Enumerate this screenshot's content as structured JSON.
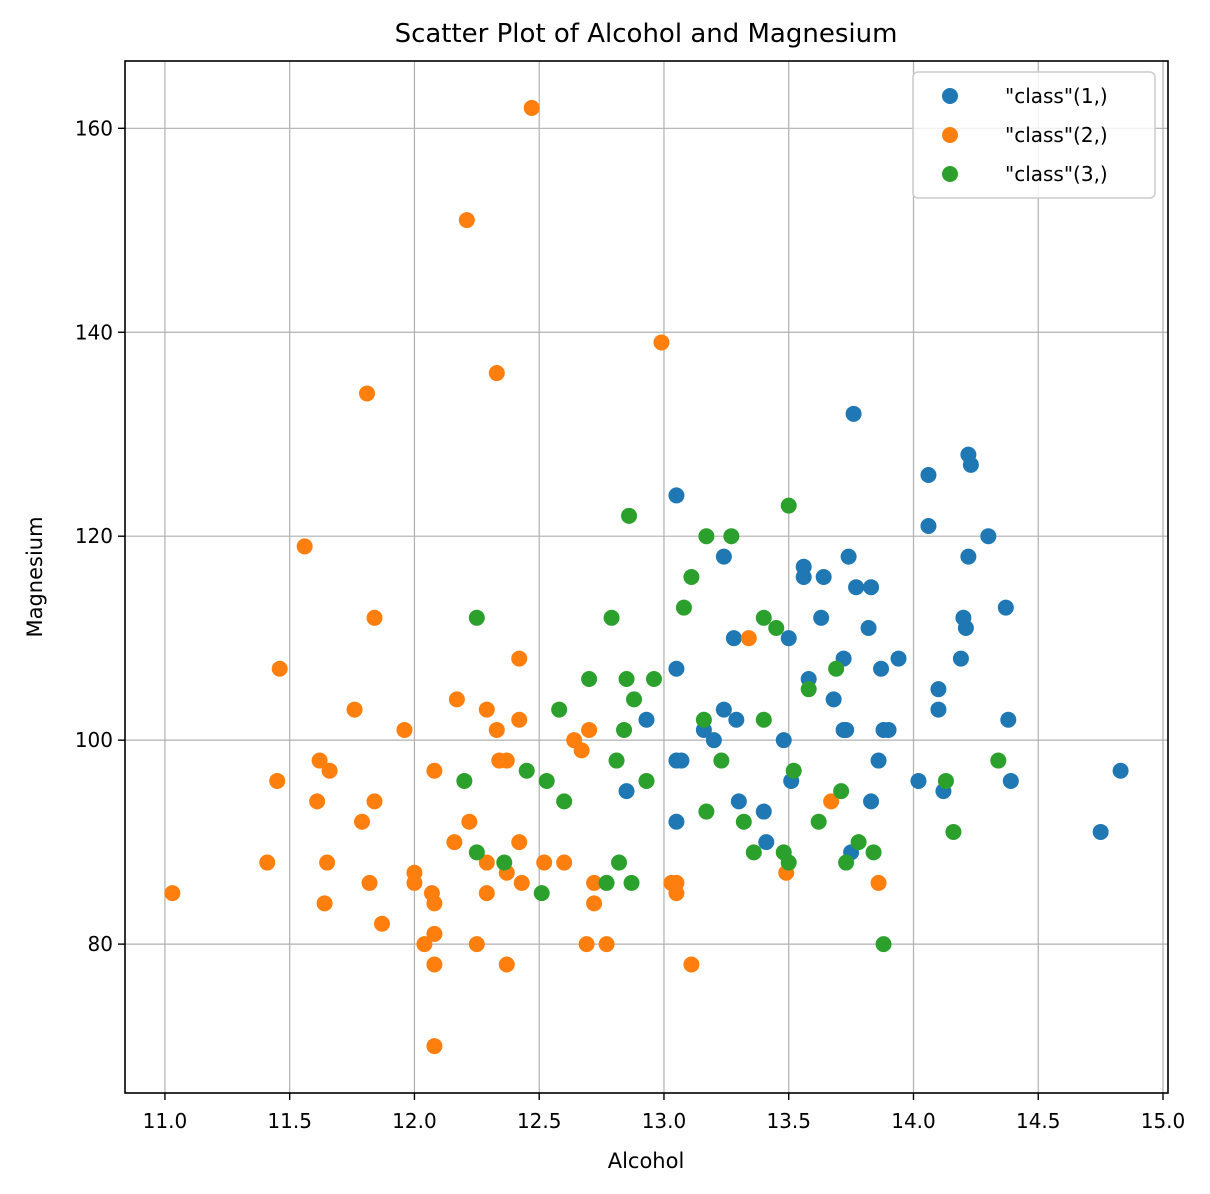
{
  "chart_data": {
    "type": "scatter",
    "title": "Scatter Plot of Alcohol and Magnesium",
    "xlabel": "Alcohol",
    "ylabel": "Magnesium",
    "xlim": [
      10.84,
      15.02
    ],
    "ylim": [
      65.4,
      166.6
    ],
    "xticks": [
      11.0,
      11.5,
      12.0,
      12.5,
      13.0,
      13.5,
      14.0,
      14.5,
      15.0
    ],
    "xtick_labels": [
      "11.0",
      "11.5",
      "12.0",
      "12.5",
      "13.0",
      "13.5",
      "14.0",
      "14.5",
      "15.0"
    ],
    "yticks": [
      80,
      100,
      120,
      140,
      160
    ],
    "ytick_labels": [
      "80",
      "100",
      "120",
      "140",
      "160"
    ],
    "grid": true,
    "legend_position": "top-right",
    "series": [
      {
        "name": "\"class\"(1,)",
        "color": "#1f77b4",
        "points": [
          [
            13.05,
            124
          ],
          [
            13.24,
            118
          ],
          [
            13.56,
            117
          ],
          [
            13.56,
            116
          ],
          [
            13.64,
            116
          ],
          [
            13.74,
            118
          ],
          [
            13.77,
            115
          ],
          [
            13.83,
            115
          ],
          [
            13.76,
            132
          ],
          [
            14.06,
            126
          ],
          [
            14.22,
            128
          ],
          [
            14.23,
            127
          ],
          [
            14.06,
            121
          ],
          [
            14.22,
            118
          ],
          [
            14.3,
            120
          ],
          [
            14.37,
            113
          ],
          [
            14.2,
            112
          ],
          [
            14.21,
            111
          ],
          [
            14.19,
            108
          ],
          [
            13.63,
            112
          ],
          [
            13.82,
            111
          ],
          [
            13.28,
            110
          ],
          [
            13.5,
            110
          ],
          [
            13.58,
            106
          ],
          [
            13.72,
            108
          ],
          [
            13.87,
            107
          ],
          [
            13.94,
            108
          ],
          [
            13.05,
            107
          ],
          [
            14.1,
            105
          ],
          [
            14.1,
            103
          ],
          [
            13.68,
            104
          ],
          [
            13.24,
            103
          ],
          [
            13.29,
            102
          ],
          [
            12.93,
            102
          ],
          [
            14.38,
            102
          ],
          [
            13.16,
            101
          ],
          [
            13.72,
            101
          ],
          [
            13.73,
            101
          ],
          [
            13.88,
            101
          ],
          [
            13.9,
            101
          ],
          [
            13.2,
            100
          ],
          [
            13.48,
            100
          ],
          [
            13.05,
            98
          ],
          [
            13.07,
            98
          ],
          [
            13.86,
            98
          ],
          [
            14.83,
            97
          ],
          [
            14.02,
            96
          ],
          [
            13.51,
            96
          ],
          [
            14.39,
            96
          ],
          [
            14.12,
            95
          ],
          [
            12.85,
            95
          ],
          [
            13.3,
            94
          ],
          [
            13.83,
            94
          ],
          [
            13.4,
            93
          ],
          [
            13.05,
            92
          ],
          [
            13.41,
            90
          ],
          [
            13.75,
            89
          ],
          [
            14.75,
            91
          ]
        ]
      },
      {
        "name": "\"class\"(2,)",
        "color": "#ff7f0e",
        "points": [
          [
            12.47,
            162
          ],
          [
            12.21,
            151
          ],
          [
            12.99,
            139
          ],
          [
            12.33,
            136
          ],
          [
            11.81,
            134
          ],
          [
            11.56,
            119
          ],
          [
            11.84,
            112
          ],
          [
            13.34,
            110
          ],
          [
            11.46,
            107
          ],
          [
            12.42,
            108
          ],
          [
            12.17,
            104
          ],
          [
            11.76,
            103
          ],
          [
            12.29,
            103
          ],
          [
            11.96,
            101
          ],
          [
            12.33,
            101
          ],
          [
            12.7,
            101
          ],
          [
            12.42,
            102
          ],
          [
            12.64,
            100
          ],
          [
            12.67,
            99
          ],
          [
            11.62,
            98
          ],
          [
            12.34,
            98
          ],
          [
            12.37,
            98
          ],
          [
            11.66,
            97
          ],
          [
            12.08,
            97
          ],
          [
            11.45,
            96
          ],
          [
            11.61,
            94
          ],
          [
            11.84,
            94
          ],
          [
            13.67,
            94
          ],
          [
            11.79,
            92
          ],
          [
            12.22,
            92
          ],
          [
            12.16,
            90
          ],
          [
            12.42,
            90
          ],
          [
            11.41,
            88
          ],
          [
            11.65,
            88
          ],
          [
            12.29,
            88
          ],
          [
            12.52,
            88
          ],
          [
            12.6,
            88
          ],
          [
            12.37,
            87
          ],
          [
            13.49,
            87
          ],
          [
            12.0,
            87
          ],
          [
            11.82,
            86
          ],
          [
            12.0,
            86
          ],
          [
            12.43,
            86
          ],
          [
            12.72,
            86
          ],
          [
            13.03,
            86
          ],
          [
            13.05,
            86
          ],
          [
            13.86,
            86
          ],
          [
            11.03,
            85
          ],
          [
            12.07,
            85
          ],
          [
            12.29,
            85
          ],
          [
            13.05,
            85
          ],
          [
            11.64,
            84
          ],
          [
            12.08,
            84
          ],
          [
            12.72,
            84
          ],
          [
            11.87,
            82
          ],
          [
            12.08,
            81
          ],
          [
            12.04,
            80
          ],
          [
            12.25,
            80
          ],
          [
            12.69,
            80
          ],
          [
            12.77,
            80
          ],
          [
            12.08,
            78
          ],
          [
            12.37,
            78
          ],
          [
            13.11,
            78
          ],
          [
            12.08,
            70
          ]
        ]
      },
      {
        "name": "\"class\"(3,)",
        "color": "#2ca02c",
        "points": [
          [
            13.5,
            123
          ],
          [
            12.86,
            122
          ],
          [
            13.17,
            120
          ],
          [
            13.27,
            120
          ],
          [
            13.11,
            116
          ],
          [
            13.08,
            113
          ],
          [
            12.25,
            112
          ],
          [
            12.79,
            112
          ],
          [
            13.4,
            112
          ],
          [
            13.45,
            111
          ],
          [
            12.7,
            106
          ],
          [
            12.85,
            106
          ],
          [
            12.96,
            106
          ],
          [
            13.69,
            107
          ],
          [
            13.58,
            105
          ],
          [
            12.88,
            104
          ],
          [
            12.58,
            103
          ],
          [
            13.16,
            102
          ],
          [
            13.4,
            102
          ],
          [
            12.84,
            101
          ],
          [
            12.81,
            98
          ],
          [
            13.23,
            98
          ],
          [
            14.34,
            98
          ],
          [
            12.45,
            97
          ],
          [
            13.52,
            97
          ],
          [
            12.2,
            96
          ],
          [
            12.53,
            96
          ],
          [
            12.93,
            96
          ],
          [
            14.13,
            96
          ],
          [
            13.71,
            95
          ],
          [
            12.6,
            94
          ],
          [
            13.17,
            93
          ],
          [
            13.32,
            92
          ],
          [
            13.62,
            92
          ],
          [
            14.16,
            91
          ],
          [
            13.78,
            90
          ],
          [
            12.25,
            89
          ],
          [
            13.36,
            89
          ],
          [
            13.48,
            89
          ],
          [
            13.84,
            89
          ],
          [
            12.36,
            88
          ],
          [
            12.82,
            88
          ],
          [
            13.5,
            88
          ],
          [
            13.73,
            88
          ],
          [
            12.77,
            86
          ],
          [
            12.87,
            86
          ],
          [
            12.51,
            85
          ],
          [
            13.88,
            80
          ]
        ]
      }
    ]
  }
}
